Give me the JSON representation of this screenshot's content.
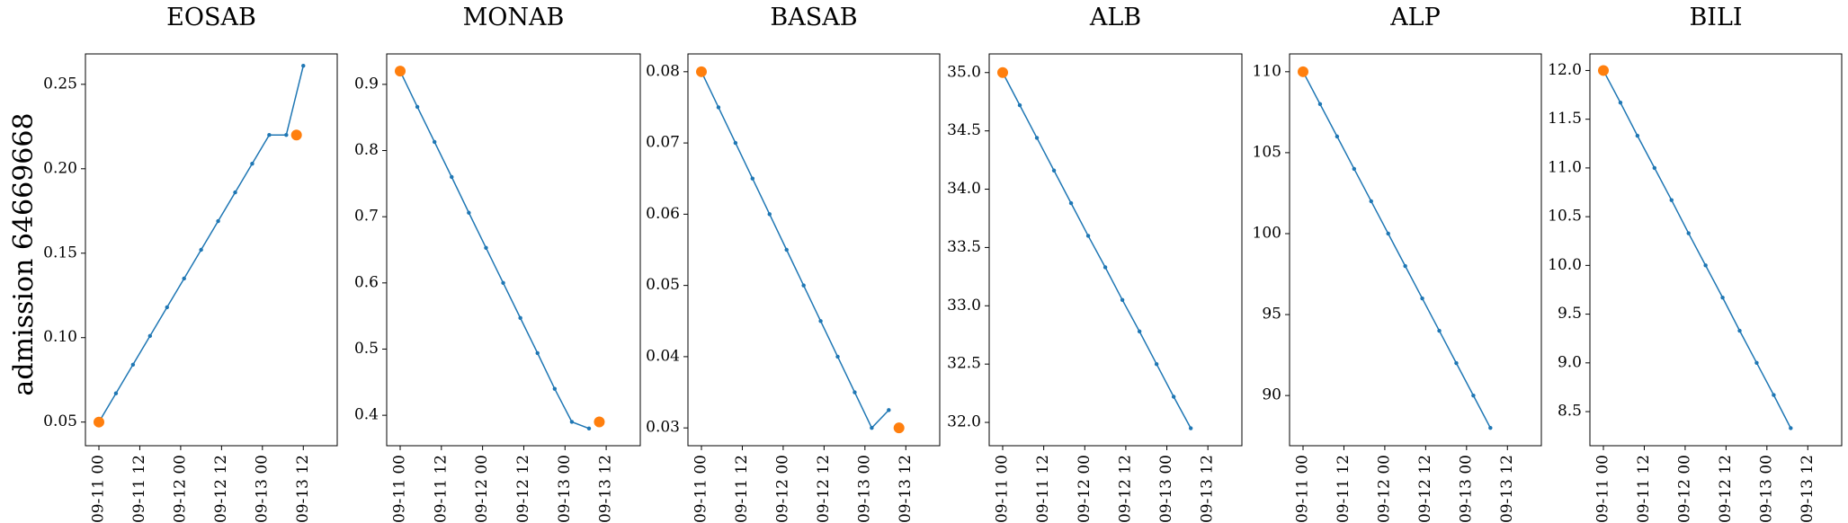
{
  "figure": {
    "ylabel": "admission 64669668"
  },
  "x_ticks": [
    "09-11 00",
    "09-11 12",
    "09-12 00",
    "09-12 12",
    "09-13 00",
    "09-13 12"
  ],
  "colors": {
    "line": "#1f77b4",
    "marker": "#ff7f0e"
  },
  "chart_data": [
    {
      "type": "line",
      "title": "EOSAB",
      "x": [
        "09-11 00:00",
        "09-11 05:00",
        "09-11 10:00",
        "09-11 15:00",
        "09-11 20:00",
        "09-12 01:00",
        "09-12 06:00",
        "09-12 11:00",
        "09-12 16:00",
        "09-12 21:00",
        "09-13 02:00",
        "09-13 07:00",
        "09-13 12:00",
        "09-13 17:00"
      ],
      "values": [
        0.05,
        0.067,
        0.084,
        0.101,
        0.118,
        0.135,
        0.152,
        0.169,
        0.186,
        0.203,
        0.22,
        0.22,
        0.261,
        null
      ],
      "highlights": [
        {
          "x": "09-11 00:00",
          "y": 0.05
        },
        {
          "x": "09-13 10:00",
          "y": 0.22
        }
      ],
      "y_ticks": [
        "0.05",
        "0.10",
        "0.15",
        "0.20",
        "0.25"
      ],
      "ylim": [
        0.036,
        0.268
      ]
    },
    {
      "type": "line",
      "title": "MONAB",
      "x": [
        "09-11 00:00",
        "09-11 05:00",
        "09-11 10:00",
        "09-11 15:00",
        "09-11 20:00",
        "09-12 01:00",
        "09-12 06:00",
        "09-12 11:00",
        "09-12 16:00",
        "09-12 21:00",
        "09-13 02:00",
        "09-13 07:00",
        "09-13 12:00",
        "09-13 17:00"
      ],
      "values": [
        0.92,
        0.866,
        0.813,
        0.76,
        0.706,
        0.653,
        0.6,
        0.547,
        0.494,
        0.44,
        0.39,
        0.38,
        null,
        null
      ],
      "highlights": [
        {
          "x": "09-11 00:00",
          "y": 0.92
        },
        {
          "x": "09-13 10:00",
          "y": 0.39
        }
      ],
      "y_ticks": [
        "0.4",
        "0.5",
        "0.6",
        "0.7",
        "0.8",
        "0.9"
      ],
      "ylim": [
        0.354,
        0.946
      ]
    },
    {
      "type": "line",
      "title": "BASAB",
      "x": [
        "09-11 00:00",
        "09-11 05:00",
        "09-11 10:00",
        "09-11 15:00",
        "09-11 20:00",
        "09-12 01:00",
        "09-12 06:00",
        "09-12 11:00",
        "09-12 16:00",
        "09-12 21:00",
        "09-13 02:00",
        "09-13 07:00",
        "09-13 12:00",
        "09-13 17:00"
      ],
      "values": [
        0.08,
        0.075,
        0.07,
        0.065,
        0.06,
        0.055,
        0.05,
        0.045,
        0.04,
        0.035,
        0.03,
        0.0325,
        null,
        null
      ],
      "highlights": [
        {
          "x": "09-11 00:00",
          "y": 0.08
        },
        {
          "x": "09-13 10:00",
          "y": 0.03
        }
      ],
      "y_ticks": [
        "0.03",
        "0.04",
        "0.05",
        "0.06",
        "0.07",
        "0.08"
      ],
      "ylim": [
        0.0275,
        0.0825
      ]
    },
    {
      "type": "line",
      "title": "ALB",
      "x": [
        "09-11 00:00",
        "09-11 05:00",
        "09-11 10:00",
        "09-11 15:00",
        "09-11 20:00",
        "09-12 01:00",
        "09-12 06:00",
        "09-12 11:00",
        "09-12 16:00",
        "09-12 21:00",
        "09-13 02:00",
        "09-13 07:00",
        "09-13 12:00",
        "09-13 17:00"
      ],
      "values": [
        35.0,
        34.72,
        34.44,
        34.16,
        33.88,
        33.6,
        33.33,
        33.05,
        32.78,
        32.5,
        32.22,
        31.95,
        null,
        null
      ],
      "highlights": [
        {
          "x": "09-11 00:00",
          "y": 35.0
        }
      ],
      "y_ticks": [
        "32.0",
        "32.5",
        "33.0",
        "33.5",
        "34.0",
        "34.5",
        "35.0"
      ],
      "ylim": [
        31.8,
        35.16
      ]
    },
    {
      "type": "line",
      "title": "ALP",
      "x": [
        "09-11 00:00",
        "09-11 05:00",
        "09-11 10:00",
        "09-11 15:00",
        "09-11 20:00",
        "09-12 01:00",
        "09-12 06:00",
        "09-12 11:00",
        "09-12 16:00",
        "09-12 21:00",
        "09-13 02:00",
        "09-13 07:00",
        "09-13 12:00",
        "09-13 17:00"
      ],
      "values": [
        110,
        108,
        106,
        104,
        102,
        100,
        98,
        96,
        94,
        92,
        90,
        88,
        null,
        null
      ],
      "highlights": [
        {
          "x": "09-11 00:00",
          "y": 110
        }
      ],
      "y_ticks": [
        "90",
        "95",
        "100",
        "105",
        "110"
      ],
      "ylim": [
        86.9,
        111.1
      ]
    },
    {
      "type": "line",
      "title": "BILI",
      "x": [
        "09-11 00:00",
        "09-11 05:00",
        "09-11 10:00",
        "09-11 15:00",
        "09-11 20:00",
        "09-12 01:00",
        "09-12 06:00",
        "09-12 11:00",
        "09-12 16:00",
        "09-12 21:00",
        "09-13 02:00",
        "09-13 07:00",
        "09-13 12:00",
        "09-13 17:00"
      ],
      "values": [
        12.0,
        11.67,
        11.33,
        11.0,
        10.67,
        10.33,
        10.0,
        9.67,
        9.33,
        9.0,
        8.67,
        8.33,
        null,
        null
      ],
      "highlights": [
        {
          "x": "09-11 00:00",
          "y": 12.0
        }
      ],
      "y_ticks": [
        "8.5",
        "9.0",
        "9.5",
        "10.0",
        "10.5",
        "11.0",
        "11.5",
        "12.0"
      ],
      "ylim": [
        8.15,
        12.17
      ]
    }
  ]
}
